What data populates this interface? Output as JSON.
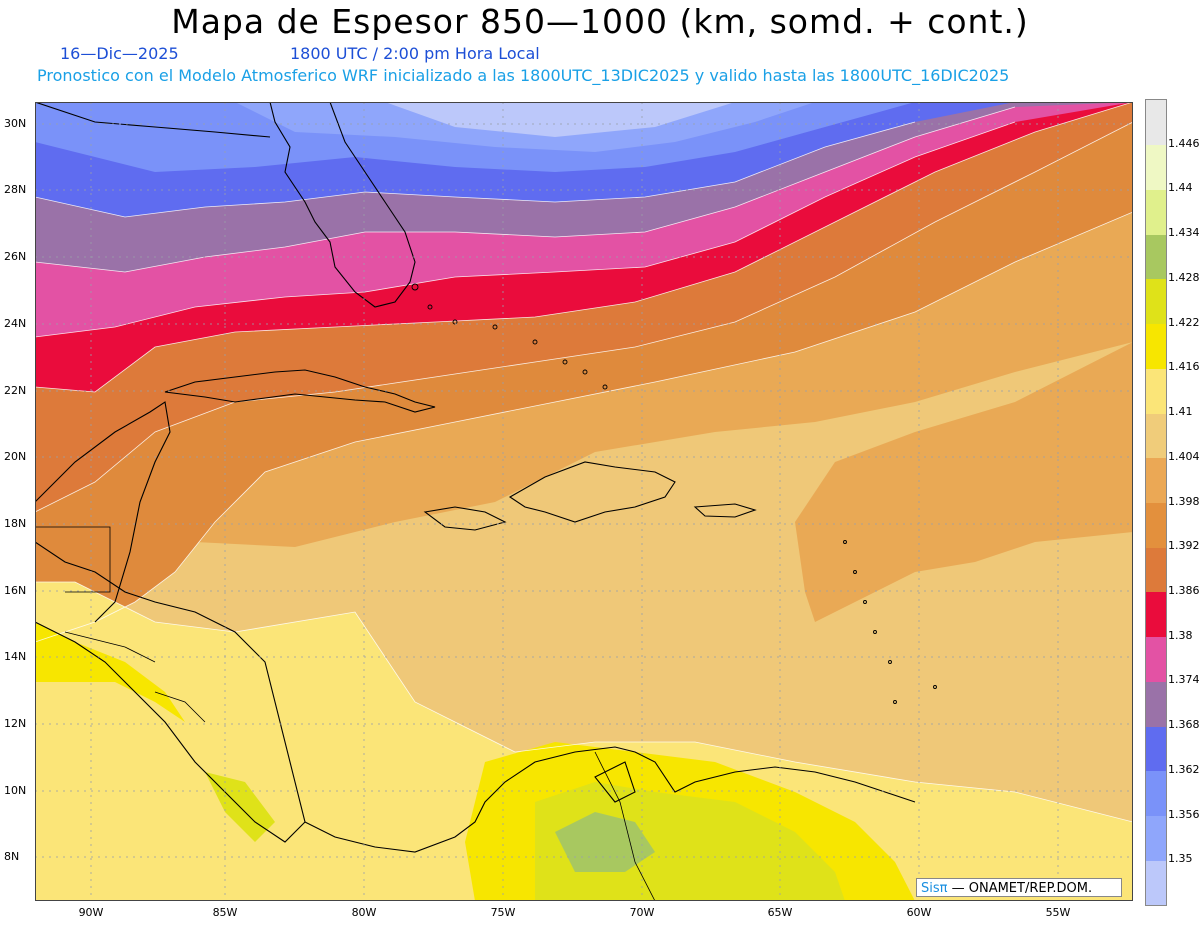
{
  "title": "Mapa de Espesor 850—1000 (km, somd. + cont.)",
  "subtitle": {
    "date": "16—Dic—2025",
    "time": "1800 UTC / 2:00 pm Hora Local",
    "info": "Pronostico con el Modelo Atmosferico WRF inicializado a las 1800UTC_13DIC2025 y valido hasta las  1800UTC_16DIC2025"
  },
  "map": {
    "lat_ticks": [
      "30N",
      "28N",
      "26N",
      "24N",
      "22N",
      "20N",
      "18N",
      "16N",
      "14N",
      "12N",
      "10N",
      "8N"
    ],
    "lon_ticks": [
      "90W",
      "85W",
      "80W",
      "75W",
      "70W",
      "65W",
      "60W",
      "55W"
    ],
    "lat_range": [
      6.5,
      30.5
    ],
    "lon_range": [
      -92,
      -52.5
    ]
  },
  "legend": {
    "levels": [
      "1.35",
      "1.356",
      "1.362",
      "1.368",
      "1.374",
      "1.38",
      "1.386",
      "1.392",
      "1.398",
      "1.404",
      "1.41",
      "1.416",
      "1.422",
      "1.428",
      "1.434",
      "1.44",
      "1.446"
    ],
    "colors": [
      "#bcc8fa",
      "#8fa6fb",
      "#7a92f9",
      "#5f6cf0",
      "#9a72a8",
      "#e352a4",
      "#ea0c3c",
      "#dd7a3a",
      "#e3903d",
      "#eba855",
      "#f0cc7a",
      "#fbe578",
      "#f7e600",
      "#dfe219",
      "#a8c860",
      "#e0f08c",
      "#eff8c4",
      "#e8e8e8"
    ]
  },
  "credit": {
    "brand": "Sisπ",
    "text": "— ONAMET/REP.DOM."
  }
}
